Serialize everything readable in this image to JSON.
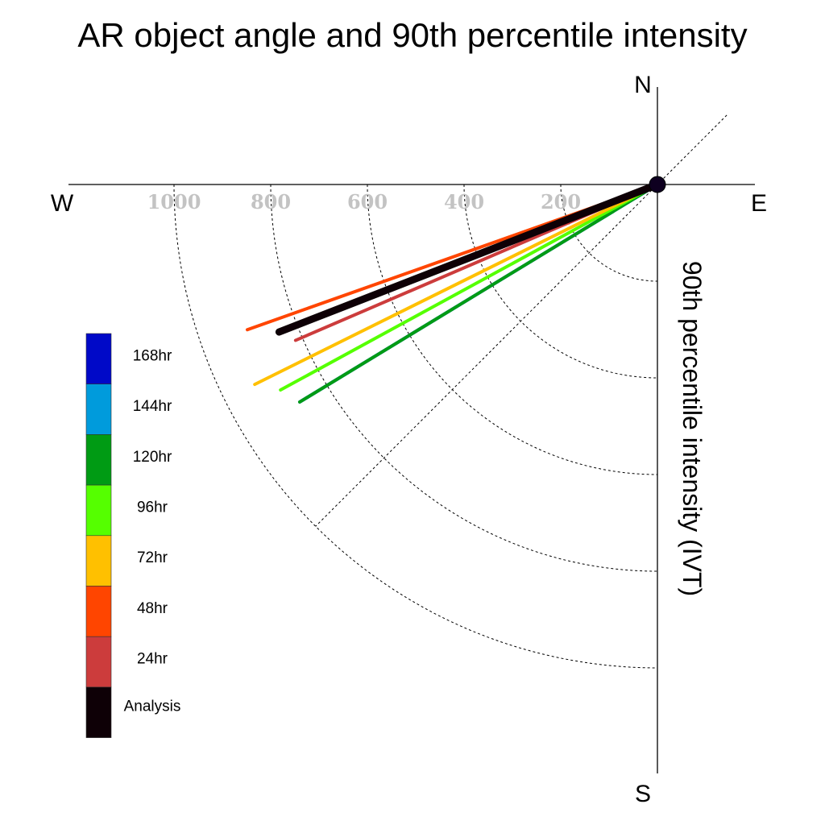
{
  "chart_data": {
    "type": "polar-quadrant",
    "title": "AR object angle and 90th percentile intensity",
    "radial_axis_label": "90th percentile intensity (IVT)",
    "compass": {
      "north": "N",
      "south": "S",
      "east": "E",
      "west": "W"
    },
    "radial_ticks": [
      200,
      400,
      600,
      800,
      1000
    ],
    "rmax": 1000,
    "grid": true,
    "legend_position": "left",
    "series": [
      {
        "name": "Analysis",
        "color": "#0e0006",
        "angle_deg": 201.3,
        "intensity": 840
      },
      {
        "name": "24hr",
        "color": "#cc3c3c",
        "angle_deg": 203.3,
        "intensity": 815
      },
      {
        "name": "48hr",
        "color": "#ff4500",
        "angle_deg": 199.5,
        "intensity": 900
      },
      {
        "name": "72hr",
        "color": "#ffc000",
        "angle_deg": 206.4,
        "intensity": 930
      },
      {
        "name": "96hr",
        "color": "#55ff00",
        "angle_deg": 208.6,
        "intensity": 888
      },
      {
        "name": "120hr",
        "color": "#009b14",
        "angle_deg": 211.3,
        "intensity": 866
      },
      {
        "name": "144hr",
        "color": "#009bdc",
        "angle_deg": 211.3,
        "intensity": 866
      },
      {
        "name": "168hr",
        "color": "#0009c8",
        "angle_deg": 211.3,
        "intensity": 866
      }
    ],
    "legend_order": [
      "168hr",
      "144hr",
      "120hr",
      "96hr",
      "72hr",
      "48hr",
      "24hr",
      "Analysis"
    ]
  }
}
